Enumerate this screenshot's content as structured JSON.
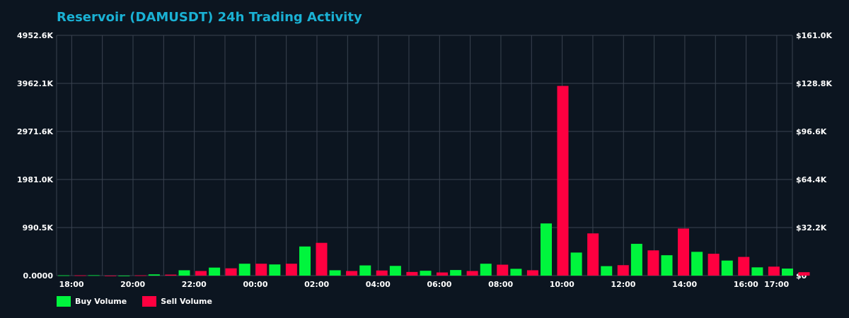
{
  "title": "Reservoir (DAMUSDT) 24h Trading Activity",
  "colors": {
    "buy": "#00f53d",
    "sell": "#ff0040",
    "grid": "#3a4350",
    "axis_text": "#ffffff",
    "title": "#1ab1d4",
    "background": "#0c1520"
  },
  "legend": {
    "buy_label": "Buy Volume",
    "sell_label": "Sell Volume"
  },
  "chart_data": {
    "type": "bar",
    "title": "Reservoir (DAMUSDT) 24h Trading Activity",
    "legend_position": "bottom-left",
    "grid": true,
    "left_axis": {
      "ylim": [
        0,
        4952.6
      ],
      "unit_note": "thousands",
      "ticks": [
        "0.0000",
        "990.5K",
        "1981.0K",
        "2971.6K",
        "3962.1K",
        "4952.6K"
      ]
    },
    "right_axis": {
      "ylim": [
        0,
        161.0
      ],
      "ticks": [
        "$0",
        "$32.2K",
        "$64.4K",
        "$96.6K",
        "$128.8K",
        "$161.0K"
      ]
    },
    "x_ticks": [
      {
        "label": "18:00",
        "hour": 0
      },
      {
        "label": "20:00",
        "hour": 2
      },
      {
        "label": "22:00",
        "hour": 4
      },
      {
        "label": "00:00",
        "hour": 6
      },
      {
        "label": "02:00",
        "hour": 8
      },
      {
        "label": "04:00",
        "hour": 10
      },
      {
        "label": "06:00",
        "hour": 12
      },
      {
        "label": "08:00",
        "hour": 14
      },
      {
        "label": "10:00",
        "hour": 16
      },
      {
        "label": "12:00",
        "hour": 18
      },
      {
        "label": "14:00",
        "hour": 20
      },
      {
        "label": "16:00",
        "hour": 22
      },
      {
        "label": "17:00",
        "hour": 23
      }
    ],
    "series": [
      {
        "name": "Buy Volume",
        "values": [
          5,
          8,
          0,
          25,
          110,
          165,
          245,
          230,
          600,
          110,
          210,
          200,
          100,
          115,
          245,
          140,
          1075,
          475,
          195,
          655,
          420,
          490,
          310,
          170,
          145
        ]
      },
      {
        "name": "Sell Volume",
        "values": [
          5,
          0,
          5,
          20,
          95,
          150,
          245,
          245,
          675,
          95,
          105,
          75,
          65,
          95,
          225,
          110,
          3910,
          870,
          215,
          520,
          970,
          450,
          385,
          185,
          70
        ]
      }
    ]
  }
}
